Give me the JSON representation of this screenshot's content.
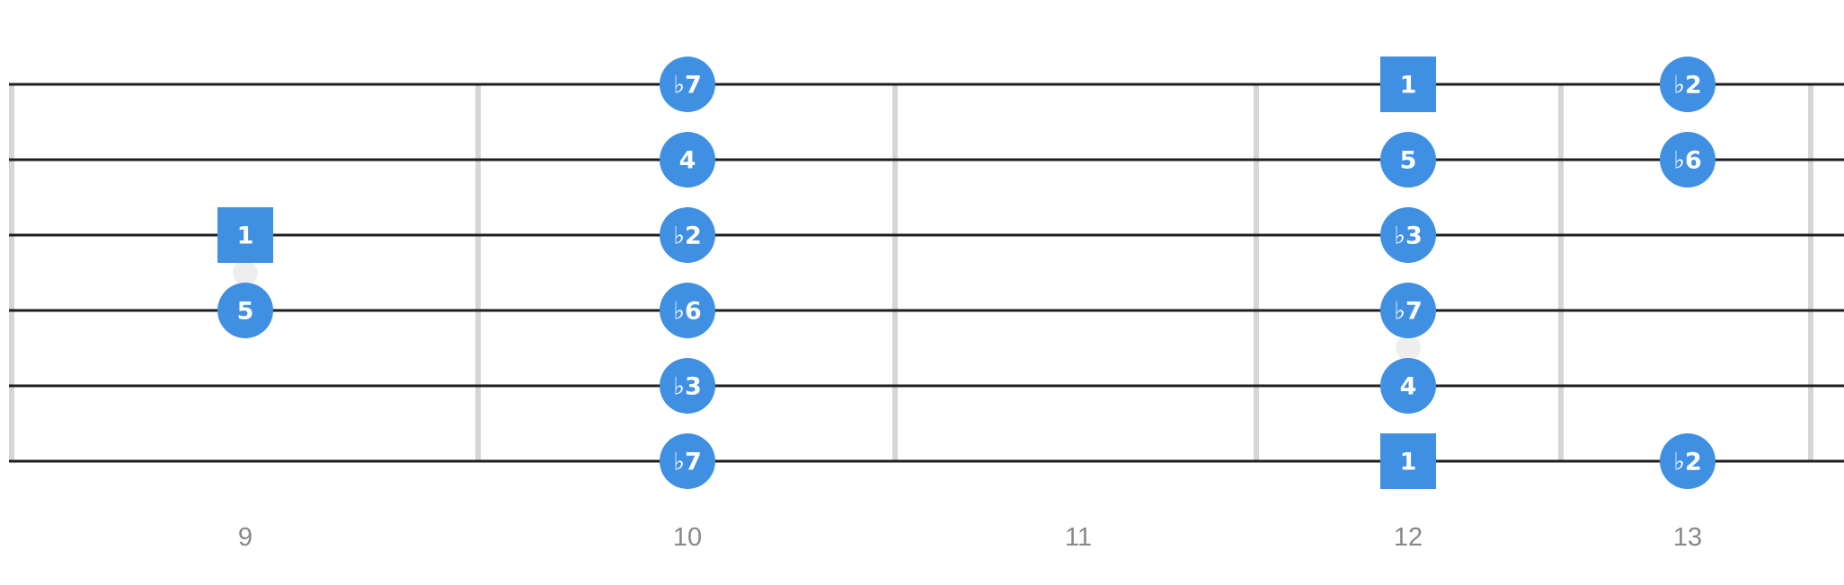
{
  "colors": {
    "string": "#1f1f1f",
    "fret": "#d6d6d6",
    "marker": "#eeeeee",
    "note": "#3f8fe3",
    "note_text": "#ffffff",
    "fret_label": "#888888"
  },
  "fret_numbers": [
    "9",
    "10",
    "11",
    "12",
    "13"
  ],
  "string_count": 6,
  "inlay_markers": [
    {
      "fret": "9",
      "between_strings": [
        3,
        4
      ]
    },
    {
      "fret": "12",
      "between_strings": [
        4,
        5
      ]
    }
  ],
  "notes": [
    {
      "string": 1,
      "fret": "10",
      "label": "♭7",
      "shape": "circle"
    },
    {
      "string": 1,
      "fret": "12",
      "label": "1",
      "shape": "square"
    },
    {
      "string": 1,
      "fret": "13",
      "label": "♭2",
      "shape": "circle"
    },
    {
      "string": 2,
      "fret": "10",
      "label": "4",
      "shape": "circle"
    },
    {
      "string": 2,
      "fret": "12",
      "label": "5",
      "shape": "circle"
    },
    {
      "string": 2,
      "fret": "13",
      "label": "♭6",
      "shape": "circle"
    },
    {
      "string": 3,
      "fret": "9",
      "label": "1",
      "shape": "square"
    },
    {
      "string": 3,
      "fret": "10",
      "label": "♭2",
      "shape": "circle"
    },
    {
      "string": 3,
      "fret": "12",
      "label": "♭3",
      "shape": "circle"
    },
    {
      "string": 4,
      "fret": "9",
      "label": "5",
      "shape": "circle"
    },
    {
      "string": 4,
      "fret": "10",
      "label": "♭6",
      "shape": "circle"
    },
    {
      "string": 4,
      "fret": "12",
      "label": "♭7",
      "shape": "circle"
    },
    {
      "string": 5,
      "fret": "10",
      "label": "♭3",
      "shape": "circle"
    },
    {
      "string": 5,
      "fret": "12",
      "label": "4",
      "shape": "circle"
    },
    {
      "string": 6,
      "fret": "10",
      "label": "♭7",
      "shape": "circle"
    },
    {
      "string": 6,
      "fret": "12",
      "label": "1",
      "shape": "square"
    },
    {
      "string": 6,
      "fret": "13",
      "label": "♭2",
      "shape": "circle"
    }
  ]
}
